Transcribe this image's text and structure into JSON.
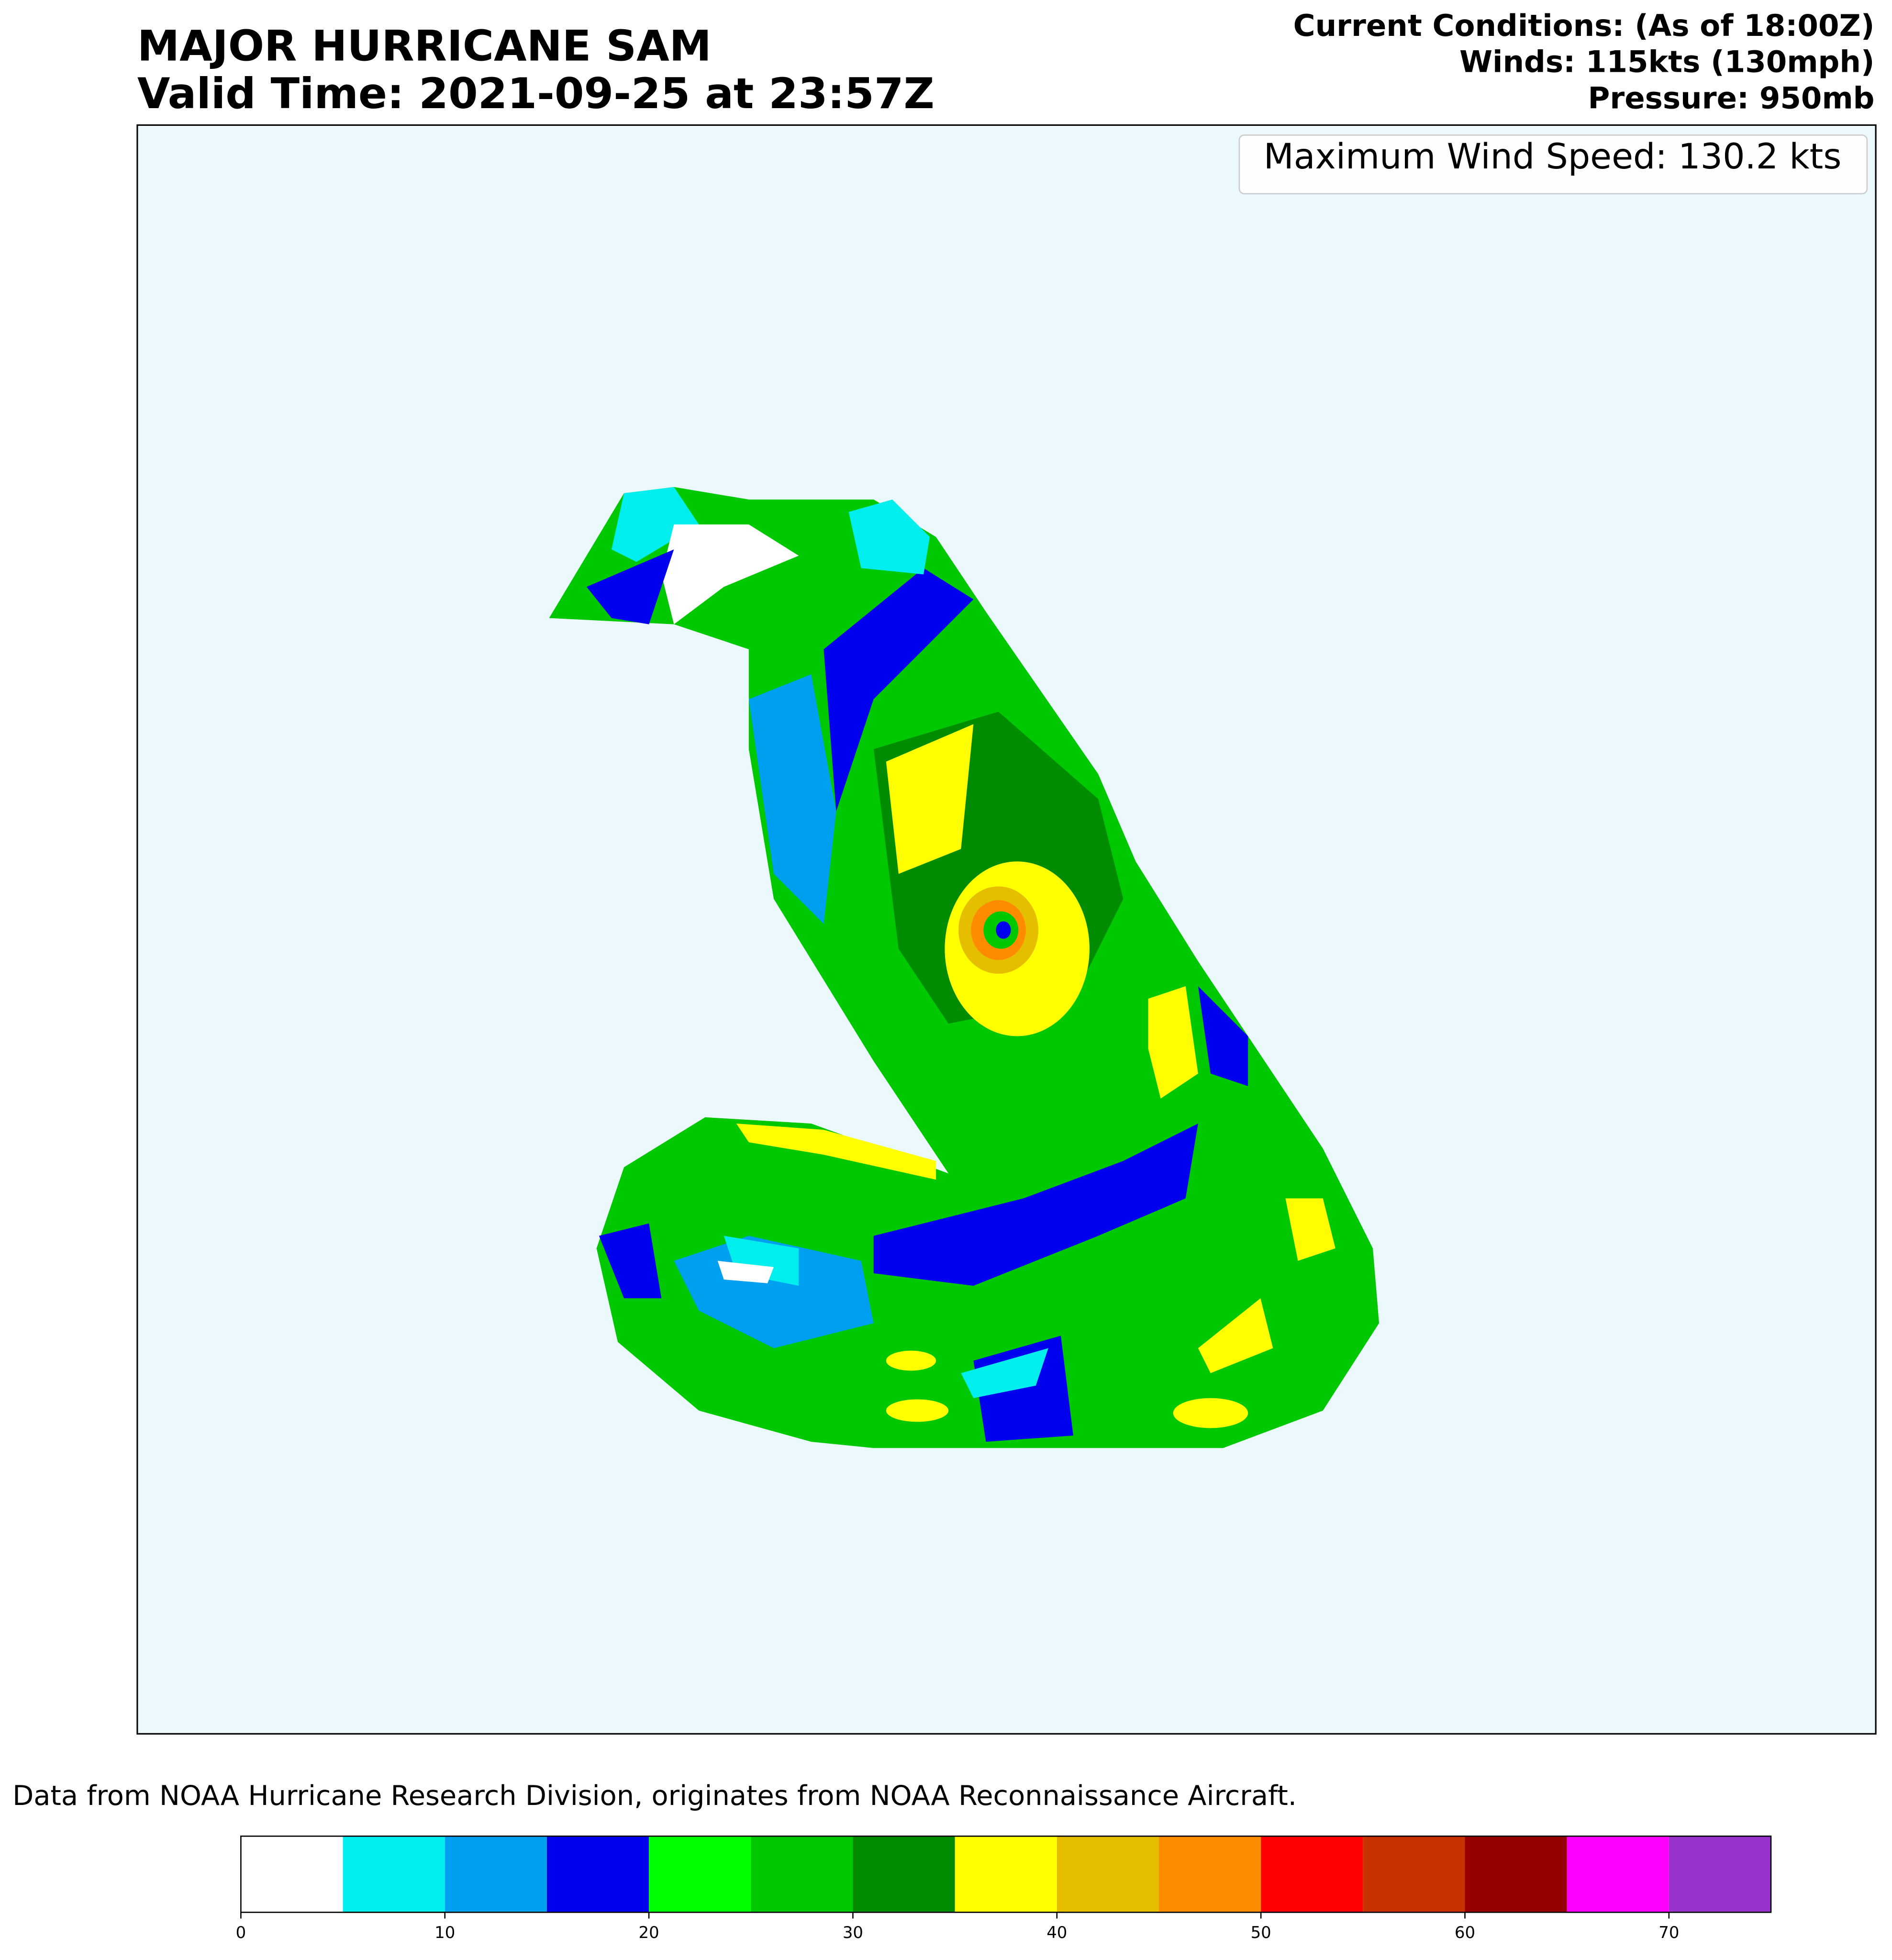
{
  "chart_data": {
    "type": "heatmap",
    "title": [
      "MAJOR HURRICANE SAM",
      "Valid Time: 2021-09-25 at 23:57Z"
    ],
    "conditions": [
      "Current Conditions: (As of 18:00Z)",
      "Winds: 115kts (130mph)",
      "Pressure:  950mb"
    ],
    "annotation": "Maximum Wind Speed: 130.2 kts",
    "note": "Data from NOAA Hurricane Research Division, originates from NOAA Reconnaissance Aircraft.",
    "colorbar": {
      "bounds": [
        0,
        5,
        10,
        15,
        20,
        25,
        30,
        35,
        40,
        45,
        50,
        55,
        60,
        65,
        70,
        75
      ],
      "colors": [
        "#ffffff",
        "#00eeee",
        "#00a0f0",
        "#0000ee",
        "#00ff00",
        "#00c800",
        "#008c00",
        "#ffff00",
        "#e6be00",
        "#ff8c00",
        "#ff0000",
        "#c83200",
        "#960000",
        "#ff00ff",
        "#9933cc"
      ],
      "xlim": [
        0,
        75
      ],
      "xticks": [
        0,
        10,
        20,
        30,
        40,
        50,
        60,
        70
      ]
    }
  }
}
